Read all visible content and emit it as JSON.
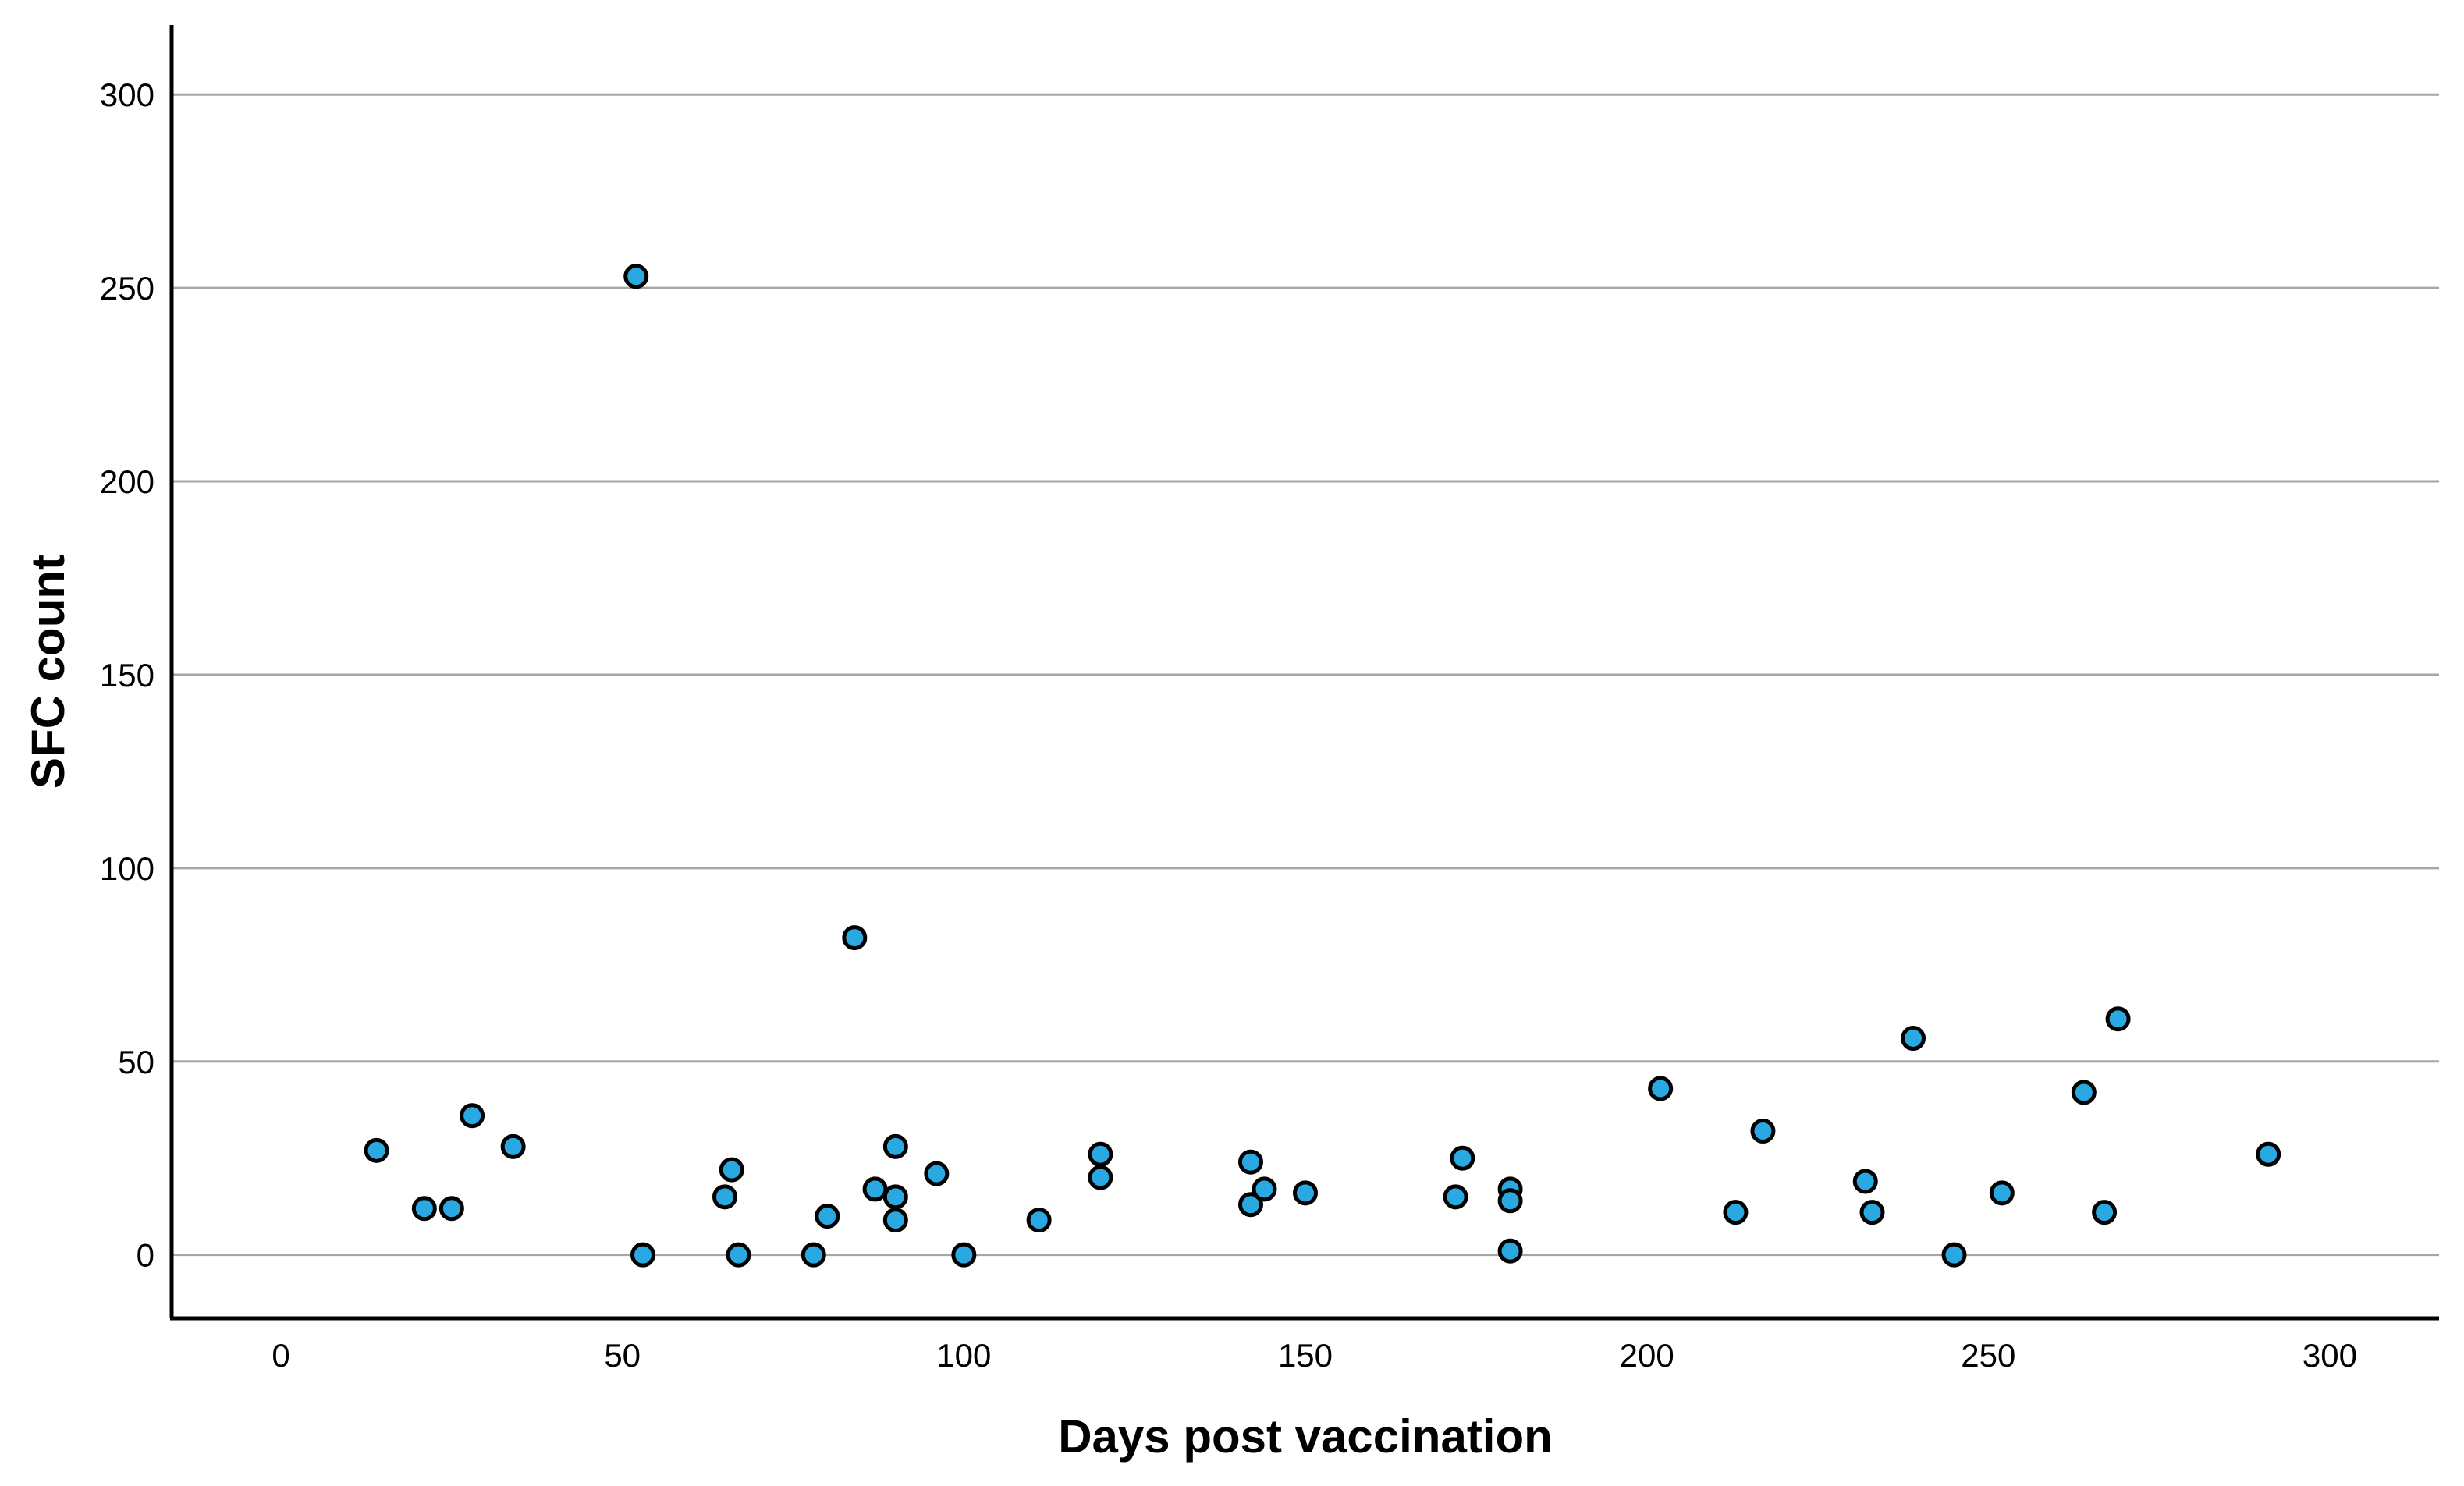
{
  "chart_data": {
    "type": "scatter",
    "title": "",
    "xlabel": "Days post vaccination",
    "ylabel": "SFC count",
    "xticks": [
      0,
      50,
      100,
      150,
      200,
      250,
      300
    ],
    "yticks": [
      0,
      50,
      100,
      150,
      200,
      250,
      300
    ],
    "xlim": [
      -16,
      316
    ],
    "ylim": [
      -16.4,
      318
    ],
    "grid": "horizontal-only",
    "legend": "none",
    "points": [
      [
        14,
        27
      ],
      [
        21,
        12
      ],
      [
        25,
        12
      ],
      [
        28,
        36
      ],
      [
        34,
        28
      ],
      [
        52,
        253
      ],
      [
        53,
        0
      ],
      [
        65,
        15
      ],
      [
        66,
        22
      ],
      [
        67,
        0
      ],
      [
        78,
        0
      ],
      [
        80,
        10
      ],
      [
        84,
        82
      ],
      [
        87,
        17
      ],
      [
        90,
        28
      ],
      [
        90,
        15
      ],
      [
        90,
        9
      ],
      [
        96,
        21
      ],
      [
        100,
        0
      ],
      [
        111,
        9
      ],
      [
        120,
        26
      ],
      [
        120,
        20
      ],
      [
        142,
        24
      ],
      [
        142,
        13
      ],
      [
        144,
        17
      ],
      [
        150,
        16
      ],
      [
        172,
        15
      ],
      [
        173,
        25
      ],
      [
        180,
        17
      ],
      [
        180,
        14
      ],
      [
        180,
        1
      ],
      [
        202,
        43
      ],
      [
        213,
        11
      ],
      [
        217,
        32
      ],
      [
        232,
        19
      ],
      [
        233,
        11
      ],
      [
        239,
        56
      ],
      [
        245,
        0
      ],
      [
        252,
        16
      ],
      [
        264,
        42
      ],
      [
        267,
        11
      ],
      [
        269,
        61
      ],
      [
        291,
        26
      ]
    ],
    "colors": {
      "dot_fill": "#29A8E2",
      "dot_stroke": "#000000",
      "gridline": "#A6A6A6",
      "axis": "#000000",
      "text": "#000000"
    }
  }
}
